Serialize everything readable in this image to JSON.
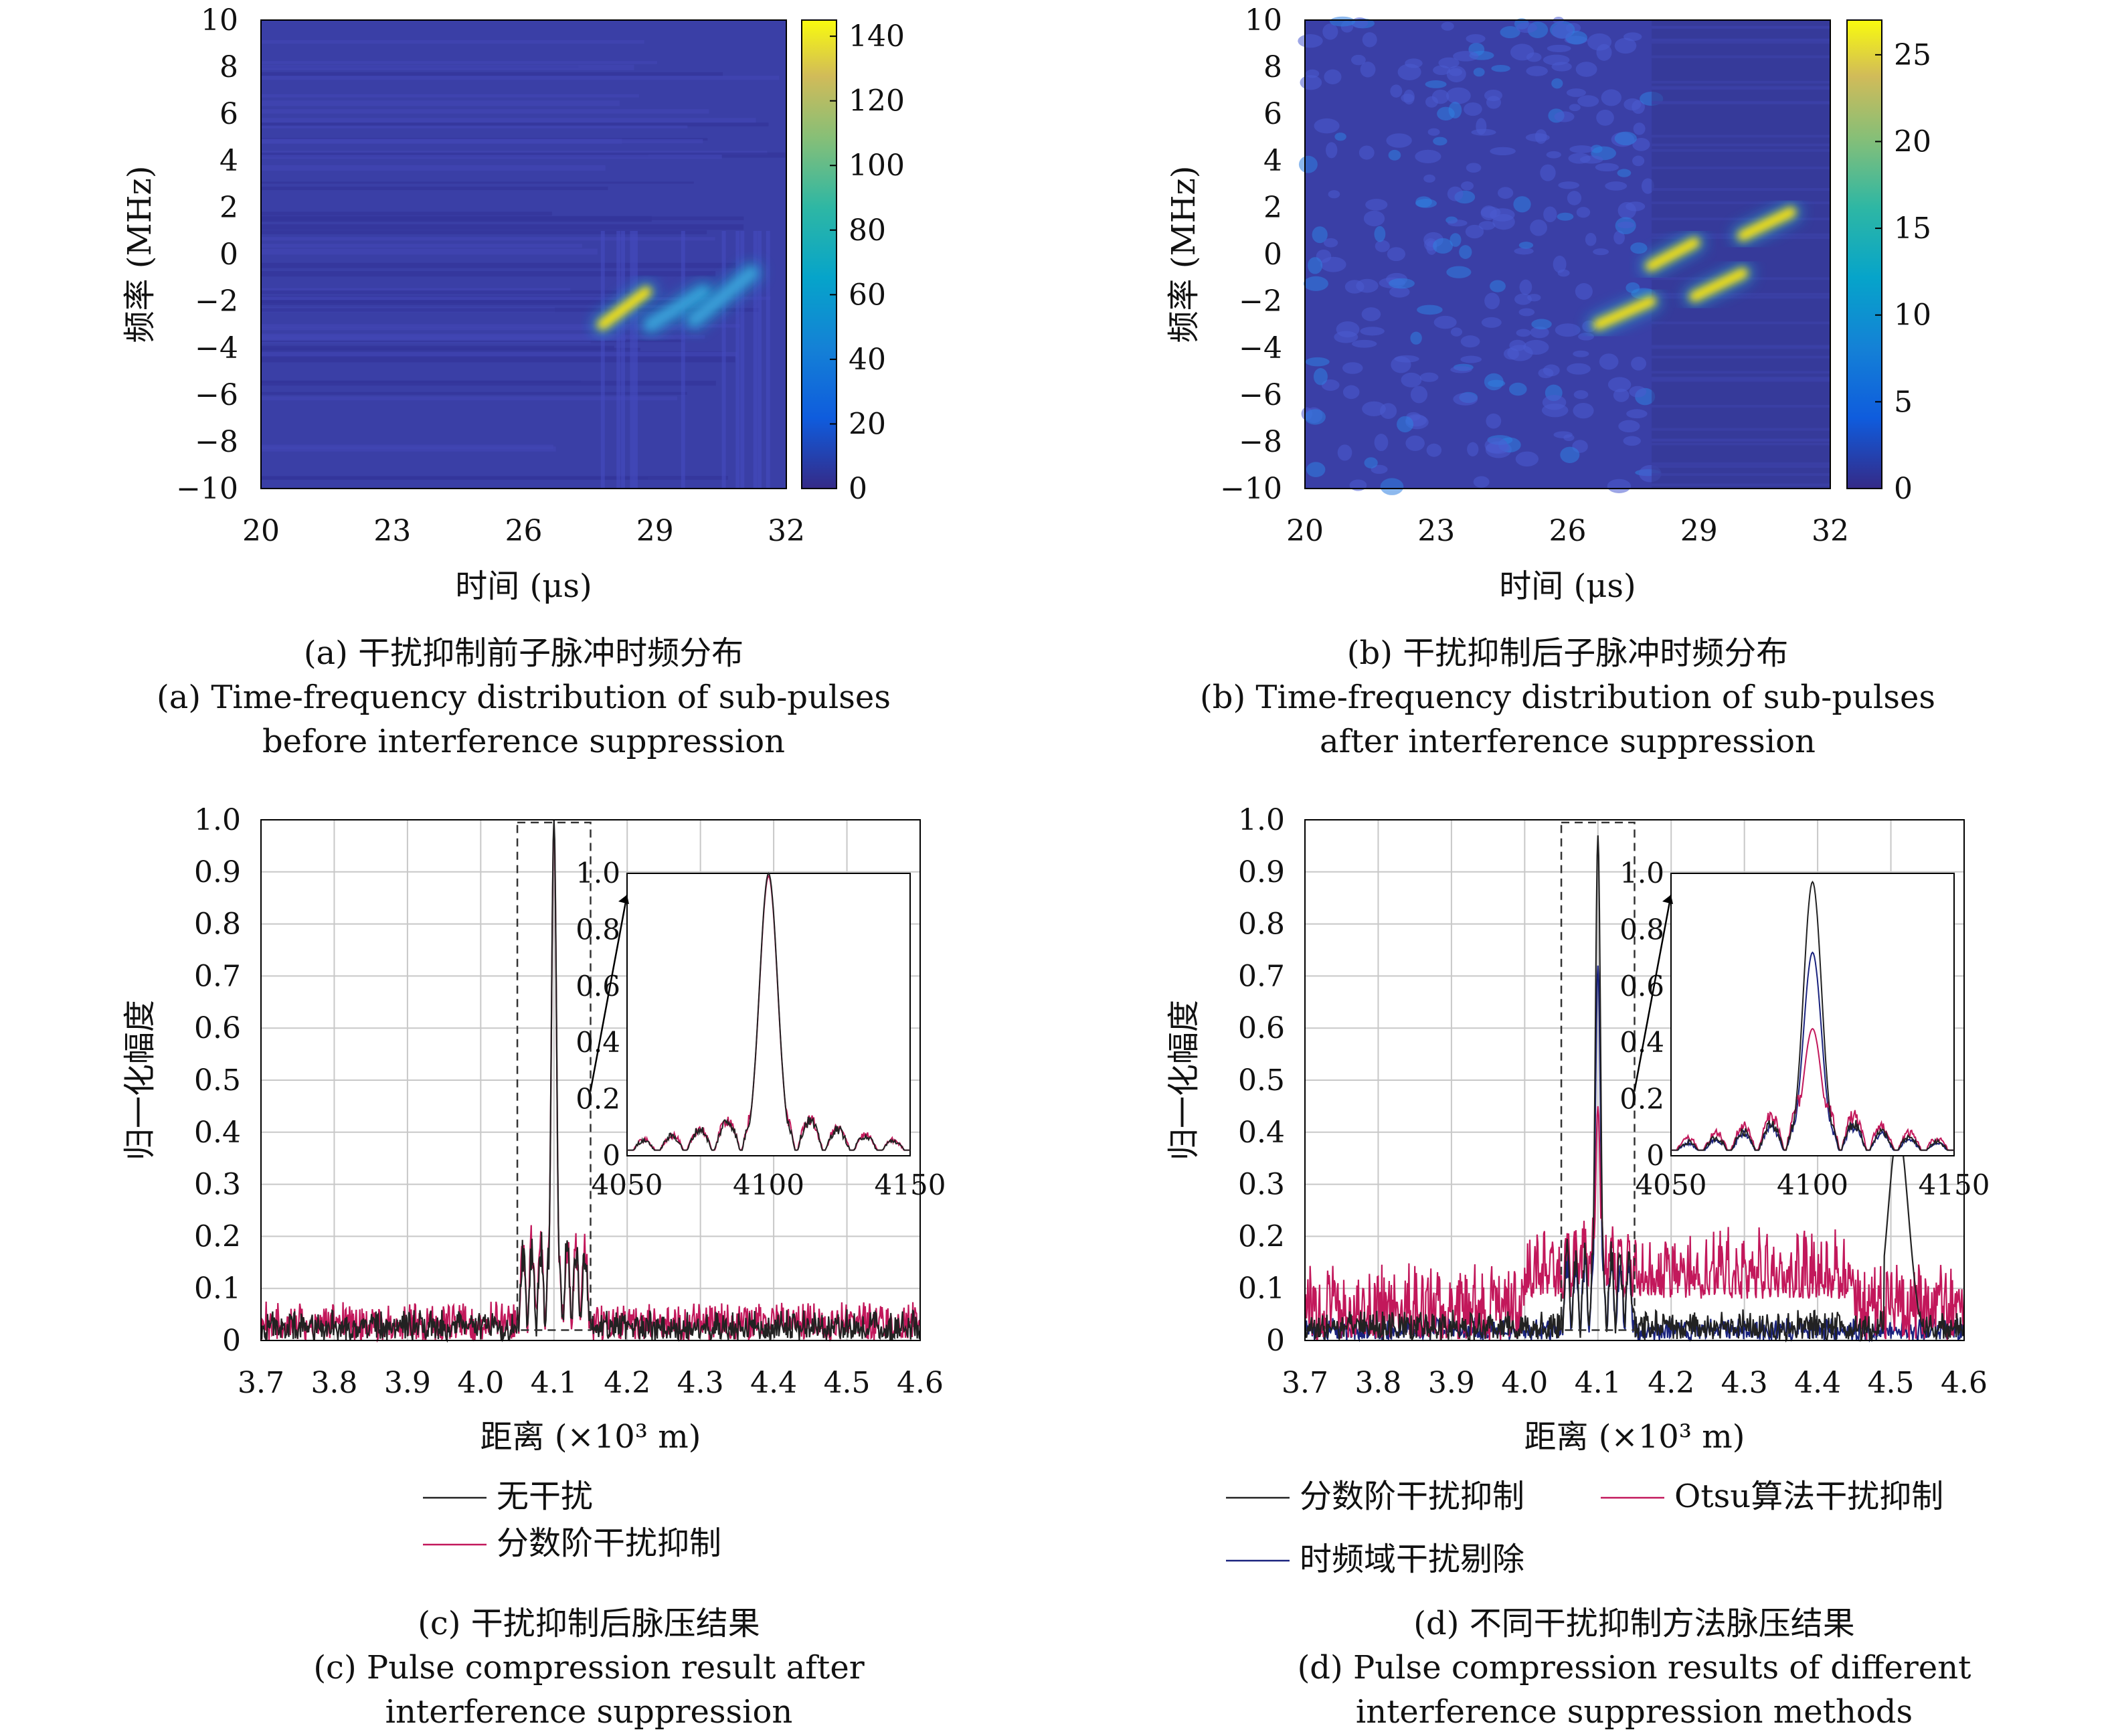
{
  "chart_data": [
    {
      "id": "a",
      "type": "heatmap",
      "xlabel": "时间 (μs)",
      "ylabel": "频率 (MHz)",
      "xlim": [
        20,
        32
      ],
      "ylim": [
        -10,
        10
      ],
      "xticks": [
        "20",
        "23",
        "26",
        "29",
        "32"
      ],
      "yticks": [
        "10",
        "8",
        "6",
        "4",
        "2",
        "0",
        "−2",
        "−4",
        "−6",
        "−8",
        "−10"
      ],
      "colorbar": {
        "range": [
          0,
          145
        ],
        "ticks": [
          "140",
          "120",
          "100",
          "80",
          "60",
          "40",
          "20",
          "0"
        ]
      },
      "features": [
        {
          "t": [
            27.8,
            28.8
          ],
          "f": [
            -3.0,
            -1.6
          ],
          "intensity": 140
        },
        {
          "t": [
            28.9,
            30.1
          ],
          "f": [
            -3.0,
            -1.6
          ],
          "intensity": 55
        },
        {
          "t": [
            29.9,
            31.2
          ],
          "f": [
            -2.8,
            -0.8
          ],
          "intensity": 60
        }
      ],
      "caption_cn": "(a) 干扰抑制前子脉冲时频分布",
      "caption_en1": "(a) Time-frequency distribution of sub-pulses",
      "caption_en2": "before interference suppression"
    },
    {
      "id": "b",
      "type": "heatmap",
      "xlabel": "时间 (μs)",
      "ylabel": "频率 (MHz)",
      "xlim": [
        20,
        32
      ],
      "ylim": [
        -10,
        10
      ],
      "xticks": [
        "20",
        "23",
        "26",
        "29",
        "32"
      ],
      "yticks": [
        "10",
        "8",
        "6",
        "4",
        "2",
        "0",
        "−2",
        "−4",
        "−6",
        "−8",
        "−10"
      ],
      "colorbar": {
        "range": [
          0,
          27
        ],
        "ticks": [
          "25",
          "20",
          "15",
          "10",
          "5",
          "0"
        ]
      },
      "features": [
        {
          "t": [
            26.7,
            27.9
          ],
          "f": [
            -3.0,
            -2.0
          ],
          "intensity": 26
        },
        {
          "t": [
            27.9,
            28.9
          ],
          "f": [
            -0.5,
            0.5
          ],
          "intensity": 26
        },
        {
          "t": [
            28.9,
            30.0
          ],
          "f": [
            -1.8,
            -0.8
          ],
          "intensity": 26
        },
        {
          "t": [
            30.0,
            31.1
          ],
          "f": [
            0.8,
            1.8
          ],
          "intensity": 26
        }
      ],
      "caption_cn": "(b) 干扰抑制后子脉冲时频分布",
      "caption_en1": "(b) Time-frequency distribution of sub-pulses",
      "caption_en2": "after interference suppression"
    },
    {
      "id": "c",
      "type": "line",
      "xlabel": "距离 (×10³ m)",
      "ylabel": "归一化幅度",
      "xlim": [
        3.7,
        4.6
      ],
      "ylim": [
        0,
        1.0
      ],
      "xticks": [
        "3.7",
        "3.8",
        "3.9",
        "4.0",
        "4.1",
        "4.2",
        "4.3",
        "4.4",
        "4.5",
        "4.6"
      ],
      "yticks": [
        "1.0",
        "0.9",
        "0.8",
        "0.7",
        "0.6",
        "0.5",
        "0.4",
        "0.3",
        "0.2",
        "0.1",
        "0"
      ],
      "grid": true,
      "series": [
        {
          "name": "无干扰",
          "color": "#222222",
          "peak_x": 4.1,
          "peak": 1.0,
          "sidelobe": 0.22,
          "floor": 0.04
        },
        {
          "name": "分数阶干扰抑制",
          "color": "#c2185b",
          "peak_x": 4.1,
          "peak": 0.99,
          "sidelobe": 0.23,
          "floor": 0.05
        }
      ],
      "inset": {
        "xlim": [
          4050,
          4150
        ],
        "ylim": [
          0,
          1.0
        ],
        "xticks": [
          "4050",
          "4100",
          "4150"
        ],
        "yticks": [
          "1.0",
          "0.8",
          "0.6",
          "0.4",
          "0.2",
          "0"
        ],
        "zoom_box_x": [
          4.05,
          4.15
        ]
      },
      "caption_cn": "(c) 干扰抑制后脉压结果",
      "caption_en1": "(c) Pulse compression result after",
      "caption_en2": "interference suppression"
    },
    {
      "id": "d",
      "type": "line",
      "xlabel": "距离 (×10³ m)",
      "ylabel": "归一化幅度",
      "xlim": [
        3.7,
        4.6
      ],
      "ylim": [
        0,
        1.0
      ],
      "xticks": [
        "3.7",
        "3.8",
        "3.9",
        "4.0",
        "4.1",
        "4.2",
        "4.3",
        "4.4",
        "4.5",
        "4.6"
      ],
      "yticks": [
        "1.0",
        "0.9",
        "0.8",
        "0.7",
        "0.6",
        "0.5",
        "0.4",
        "0.3",
        "0.2",
        "0.1",
        "0"
      ],
      "grid": true,
      "series": [
        {
          "name": "分数阶干扰抑制",
          "color": "#222222",
          "peak_x": 4.1,
          "peak": 0.97,
          "sidelobe": 0.2,
          "floor": 0.04
        },
        {
          "name": "Otsu算法干扰抑制",
          "color": "#c2185b",
          "peak_x": 4.1,
          "peak": 0.45,
          "sidelobe": 0.25,
          "floor": 0.1
        },
        {
          "name": "时频域干扰剔除",
          "color": "#1a237e",
          "peak_x": 4.1,
          "peak": 0.72,
          "sidelobe": 0.18,
          "floor": 0.03
        }
      ],
      "inset": {
        "xlim": [
          4050,
          4150
        ],
        "ylim": [
          0,
          1.0
        ],
        "xticks": [
          "4050",
          "4100",
          "4150"
        ],
        "yticks": [
          "1.0",
          "0.8",
          "0.6",
          "0.4",
          "0.2",
          "0"
        ],
        "zoom_box_x": [
          4.05,
          4.15
        ]
      },
      "caption_cn": "(d) 不同干扰抑制方法脉压结果",
      "caption_en1": "(d) Pulse compression results of different",
      "caption_en2": "interference suppression methods"
    }
  ]
}
